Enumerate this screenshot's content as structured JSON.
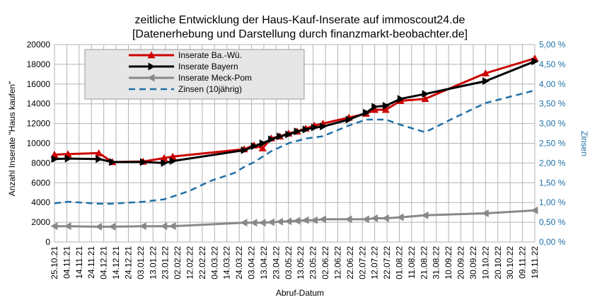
{
  "chart_data": {
    "type": "line",
    "title_lines": [
      "zeitliche Entwicklung der Haus-Kauf-Inserate auf immoscout24.de",
      "[Datenerhebung und Darstellung durch finanzmarkt-beobachter.de]"
    ],
    "xlabel": "Abruf-Datum",
    "ylabel": "Anzahl Inserate \"Haus kaufen\"",
    "y2label": "Zinsen",
    "ylim": [
      0,
      20000
    ],
    "y2lim": [
      0,
      5
    ],
    "yticks": [
      "0",
      "2000",
      "4000",
      "6000",
      "8000",
      "10000",
      "12000",
      "14000",
      "16000",
      "18000",
      "20000"
    ],
    "y2ticks": [
      "0,00 %",
      "0,50 %",
      "1,00 %",
      "1,50 %",
      "2,00 %",
      "2,50 %",
      "3,00 %",
      "3,50 %",
      "4,00 %",
      "4,50 %",
      "5,00 %"
    ],
    "categories": [
      "25.10.21",
      "04.11.21",
      "14.11.21",
      "24.11.21",
      "04.12.21",
      "14.12.21",
      "24.12.21",
      "03.01.22",
      "13.01.22",
      "23.01.22",
      "02.02.22",
      "12.02.22",
      "22.02.22",
      "04.03.22",
      "14.03.22",
      "24.03.22",
      "03.04.22",
      "13.04.22",
      "23.04.22",
      "03.05.22",
      "13.05.22",
      "23.05.22",
      "02.06.22",
      "12.06.22",
      "22.06.22",
      "02.07.22",
      "12.07.22",
      "22.07.22",
      "01.08.22",
      "11.08.22",
      "21.08.22",
      "31.08.22",
      "10.09.22",
      "20.09.22",
      "30.09.22",
      "10.10.22",
      "20.10.22",
      "30.10.22",
      "09.11.22",
      "19.11.22"
    ],
    "grid": true,
    "legend_position": "top-left",
    "series": [
      {
        "name": "Inserate Ba.-Wü.",
        "color": "#cc0000",
        "marker": "triangle-up",
        "axis": "left",
        "points": [
          [
            "2021-10-25",
            8850
          ],
          [
            "2021-11-05",
            8900
          ],
          [
            "2021-11-30",
            9000
          ],
          [
            "2021-12-11",
            8100
          ],
          [
            "2022-01-05",
            8150
          ],
          [
            "2022-01-22",
            8500
          ],
          [
            "2022-01-29",
            8650
          ],
          [
            "2022-03-28",
            9400
          ],
          [
            "2022-04-05",
            9800
          ],
          [
            "2022-04-12",
            9500
          ],
          [
            "2022-04-19",
            10500
          ],
          [
            "2022-04-26",
            10700
          ],
          [
            "2022-05-03",
            11000
          ],
          [
            "2022-05-10",
            11200
          ],
          [
            "2022-05-17",
            11500
          ],
          [
            "2022-05-24",
            11800
          ],
          [
            "2022-05-31",
            12000
          ],
          [
            "2022-06-21",
            12600
          ],
          [
            "2022-07-05",
            13000
          ],
          [
            "2022-07-12",
            13400
          ],
          [
            "2022-07-21",
            13400
          ],
          [
            "2022-08-02",
            14300
          ],
          [
            "2022-08-22",
            14500
          ],
          [
            "2022-10-10",
            17100
          ],
          [
            "2022-11-19",
            18600
          ]
        ]
      },
      {
        "name": "Inserate Bayern",
        "color": "#000000",
        "marker": "triangle-right",
        "axis": "left",
        "points": [
          [
            "2021-10-25",
            8400
          ],
          [
            "2021-11-05",
            8450
          ],
          [
            "2021-11-30",
            8400
          ],
          [
            "2021-12-11",
            8100
          ],
          [
            "2022-01-05",
            8100
          ],
          [
            "2022-01-22",
            8000
          ],
          [
            "2022-01-29",
            8200
          ],
          [
            "2022-03-28",
            9300
          ],
          [
            "2022-04-05",
            9700
          ],
          [
            "2022-04-12",
            10000
          ],
          [
            "2022-04-19",
            10400
          ],
          [
            "2022-04-26",
            10700
          ],
          [
            "2022-05-03",
            10900
          ],
          [
            "2022-05-10",
            11200
          ],
          [
            "2022-05-17",
            11400
          ],
          [
            "2022-05-24",
            11600
          ],
          [
            "2022-05-31",
            11700
          ],
          [
            "2022-06-21",
            12400
          ],
          [
            "2022-07-05",
            13100
          ],
          [
            "2022-07-12",
            13700
          ],
          [
            "2022-07-21",
            13800
          ],
          [
            "2022-08-02",
            14500
          ],
          [
            "2022-08-22",
            15000
          ],
          [
            "2022-10-10",
            16300
          ],
          [
            "2022-11-19",
            18300
          ]
        ]
      },
      {
        "name": "Inserate Meck-Pom",
        "color": "#888888",
        "marker": "triangle-left",
        "axis": "left",
        "points": [
          [
            "2021-10-25",
            1600
          ],
          [
            "2021-11-05",
            1600
          ],
          [
            "2021-11-30",
            1550
          ],
          [
            "2021-12-11",
            1550
          ],
          [
            "2022-01-05",
            1600
          ],
          [
            "2022-01-22",
            1600
          ],
          [
            "2022-01-29",
            1600
          ],
          [
            "2022-03-28",
            1950
          ],
          [
            "2022-04-05",
            1950
          ],
          [
            "2022-04-12",
            1950
          ],
          [
            "2022-04-19",
            2000
          ],
          [
            "2022-04-26",
            2050
          ],
          [
            "2022-05-03",
            2100
          ],
          [
            "2022-05-10",
            2150
          ],
          [
            "2022-05-17",
            2200
          ],
          [
            "2022-05-24",
            2200
          ],
          [
            "2022-05-31",
            2300
          ],
          [
            "2022-06-21",
            2300
          ],
          [
            "2022-07-05",
            2300
          ],
          [
            "2022-07-12",
            2400
          ],
          [
            "2022-07-21",
            2400
          ],
          [
            "2022-08-02",
            2500
          ],
          [
            "2022-08-22",
            2700
          ],
          [
            "2022-10-10",
            2900
          ],
          [
            "2022-11-19",
            3200
          ]
        ]
      },
      {
        "name": "Zinsen (10jährig)",
        "color": "#1f6fa6",
        "marker": "none",
        "dash": true,
        "axis": "right",
        "points": [
          [
            "2021-10-25",
            0.98
          ],
          [
            "2021-11-05",
            1.02
          ],
          [
            "2021-11-30",
            0.97
          ],
          [
            "2021-12-11",
            0.97
          ],
          [
            "2022-01-05",
            1.02
          ],
          [
            "2022-01-22",
            1.08
          ],
          [
            "2022-01-29",
            1.15
          ],
          [
            "2022-02-12",
            1.3
          ],
          [
            "2022-03-01",
            1.55
          ],
          [
            "2022-03-20",
            1.75
          ],
          [
            "2022-03-28",
            1.9
          ],
          [
            "2022-04-05",
            2.02
          ],
          [
            "2022-04-19",
            2.3
          ],
          [
            "2022-04-26",
            2.4
          ],
          [
            "2022-05-03",
            2.5
          ],
          [
            "2022-05-17",
            2.62
          ],
          [
            "2022-05-31",
            2.68
          ],
          [
            "2022-06-21",
            2.95
          ],
          [
            "2022-07-05",
            3.1
          ],
          [
            "2022-07-21",
            3.1
          ],
          [
            "2022-08-02",
            2.97
          ],
          [
            "2022-08-22",
            2.78
          ],
          [
            "2022-09-15",
            3.15
          ],
          [
            "2022-10-10",
            3.52
          ],
          [
            "2022-11-19",
            3.84
          ]
        ]
      }
    ]
  }
}
